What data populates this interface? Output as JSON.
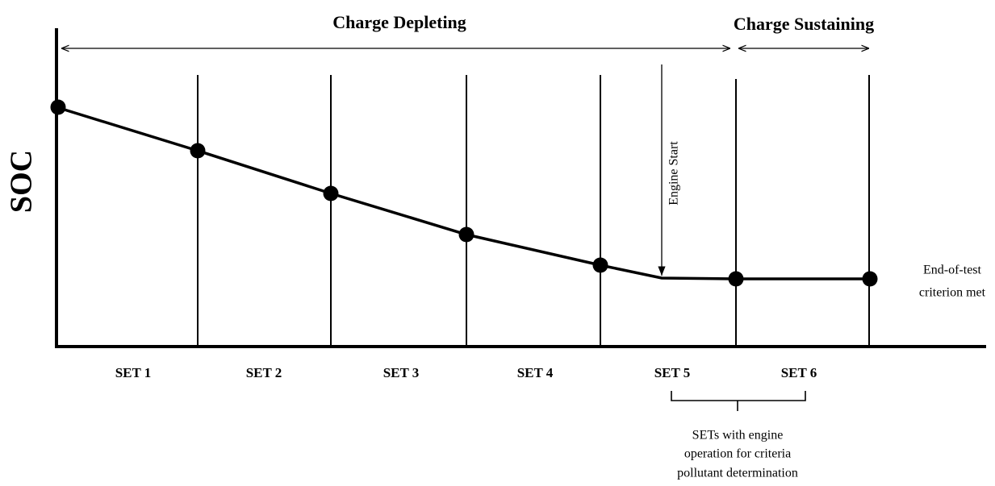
{
  "header": {
    "left": "Charge Depleting",
    "right": "Charge Sustaining"
  },
  "axis_label": "SOC",
  "engine_start": "Engine Start",
  "end_note": [
    "End-of-test",
    "criterion met"
  ],
  "sets": [
    "SET 1",
    "SET 2",
    "SET 3",
    "SET 4",
    "SET 5",
    "SET 6"
  ],
  "bracket_note": [
    "SETs with engine",
    "operation for criteria",
    "pollutant determination"
  ]
}
